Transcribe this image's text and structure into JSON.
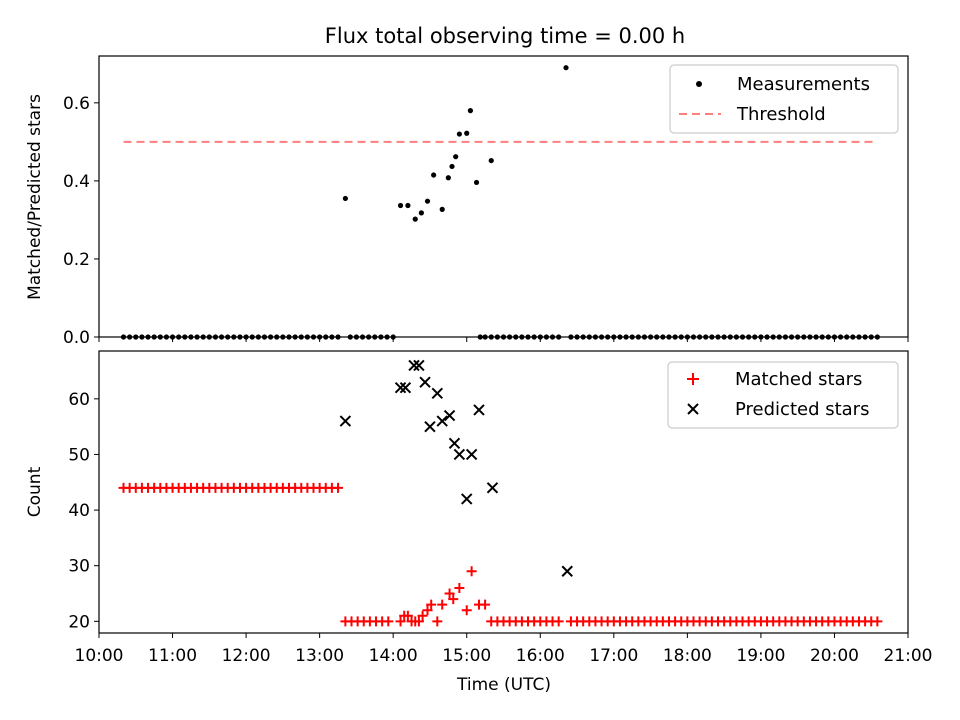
{
  "title": "Flux total observing time = 0.00 h",
  "xlabel": "Time (UTC)",
  "x_tick_labels": [
    "10:00",
    "11:00",
    "12:00",
    "13:00",
    "14:00",
    "15:00",
    "16:00",
    "17:00",
    "18:00",
    "19:00",
    "20:00",
    "21:00"
  ],
  "colors": {
    "measurement": "#000000",
    "threshold": "#ff7f7f",
    "matched": "#ff0000",
    "predicted": "#000000"
  },
  "chart_data": [
    {
      "type": "scatter",
      "ylabel": "Matched/Predicted stars",
      "xlim": [
        "10:00",
        "21:00"
      ],
      "ylim": [
        0,
        0.72
      ],
      "yticks": [
        "0.0",
        "0.2",
        "0.4",
        "0.6"
      ],
      "legend": {
        "position": "upper right",
        "entries": [
          "Measurements",
          "Threshold"
        ]
      },
      "threshold": {
        "name": "Threshold",
        "value": 0.5,
        "x_range": [
          "10:20",
          "20:35"
        ]
      },
      "series": [
        {
          "name": "Measurements",
          "zero_runs": [
            [
              "10:20",
              "13:17"
            ],
            [
              "13:25",
              "14:00"
            ],
            [
              "15:15",
              "16:18"
            ],
            [
              "16:25",
              "20:35"
            ]
          ],
          "points": [
            {
              "x": "13:21",
              "y": 0.355
            },
            {
              "x": "14:06",
              "y": 0.337
            },
            {
              "x": "14:12",
              "y": 0.337
            },
            {
              "x": "14:18",
              "y": 0.302
            },
            {
              "x": "14:23",
              "y": 0.318
            },
            {
              "x": "14:28",
              "y": 0.348
            },
            {
              "x": "14:33",
              "y": 0.415
            },
            {
              "x": "14:40",
              "y": 0.327
            },
            {
              "x": "14:45",
              "y": 0.408
            },
            {
              "x": "14:48",
              "y": 0.437
            },
            {
              "x": "14:51",
              "y": 0.462
            },
            {
              "x": "14:54",
              "y": 0.52
            },
            {
              "x": "15:00",
              "y": 0.522
            },
            {
              "x": "15:03",
              "y": 0.58
            },
            {
              "x": "15:08",
              "y": 0.396
            },
            {
              "x": "15:11",
              "y": 0.0
            },
            {
              "x": "15:20",
              "y": 0.452
            },
            {
              "x": "16:21",
              "y": 0.69
            }
          ]
        }
      ]
    },
    {
      "type": "scatter",
      "ylabel": "Count",
      "xlim": [
        "10:00",
        "21:00"
      ],
      "ylim": [
        17.9,
        68.6
      ],
      "yticks": [
        "20",
        "30",
        "40",
        "50",
        "60"
      ],
      "legend": {
        "position": "upper right",
        "entries": [
          "Matched stars",
          "Predicted stars"
        ]
      },
      "series": [
        {
          "name": "Matched stars",
          "runs": [
            {
              "from": "10:20",
              "to": "13:17",
              "y": 44
            },
            {
              "from": "13:21",
              "to": "14:00",
              "y": 20
            },
            {
              "from": "15:20",
              "to": "16:18",
              "y": 20
            },
            {
              "from": "16:25",
              "to": "20:35",
              "y": 20
            }
          ],
          "points": [
            {
              "x": "14:06",
              "y": 20
            },
            {
              "x": "14:09",
              "y": 21
            },
            {
              "x": "14:12",
              "y": 21
            },
            {
              "x": "14:15",
              "y": 20
            },
            {
              "x": "14:18",
              "y": 20
            },
            {
              "x": "14:21",
              "y": 20
            },
            {
              "x": "14:24",
              "y": 21
            },
            {
              "x": "14:28",
              "y": 22
            },
            {
              "x": "14:31",
              "y": 23
            },
            {
              "x": "14:36",
              "y": 20
            },
            {
              "x": "14:40",
              "y": 23
            },
            {
              "x": "14:46",
              "y": 25
            },
            {
              "x": "14:49",
              "y": 24
            },
            {
              "x": "14:54",
              "y": 26
            },
            {
              "x": "15:00",
              "y": 22
            },
            {
              "x": "15:04",
              "y": 29
            },
            {
              "x": "15:10",
              "y": 23
            },
            {
              "x": "15:15",
              "y": 23
            }
          ]
        },
        {
          "name": "Predicted stars",
          "points": [
            {
              "x": "13:21",
              "y": 56
            },
            {
              "x": "14:06",
              "y": 62
            },
            {
              "x": "14:10",
              "y": 62
            },
            {
              "x": "14:17",
              "y": 66
            },
            {
              "x": "14:21",
              "y": 66
            },
            {
              "x": "14:26",
              "y": 63
            },
            {
              "x": "14:30",
              "y": 55
            },
            {
              "x": "14:36",
              "y": 61
            },
            {
              "x": "14:40",
              "y": 56
            },
            {
              "x": "14:46",
              "y": 57
            },
            {
              "x": "14:50",
              "y": 52
            },
            {
              "x": "14:54",
              "y": 50
            },
            {
              "x": "15:00",
              "y": 42
            },
            {
              "x": "15:04",
              "y": 50
            },
            {
              "x": "15:10",
              "y": 58
            },
            {
              "x": "15:21",
              "y": 44
            },
            {
              "x": "16:22",
              "y": 29
            }
          ]
        }
      ]
    }
  ]
}
